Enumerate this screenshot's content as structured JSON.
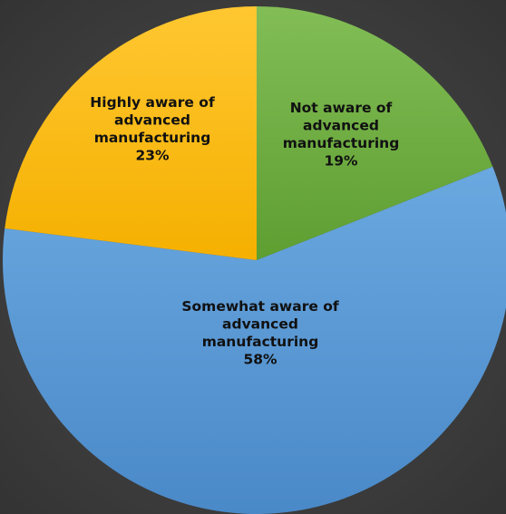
{
  "chart_data": {
    "type": "pie",
    "title": "",
    "start_angle_deg": 0,
    "direction": "clockwise",
    "slices": [
      {
        "label_lines": [
          "Not aware of",
          "advanced",
          "manufacturing"
        ],
        "percent_label": "19%",
        "value": 19,
        "color": "#6bab3f"
      },
      {
        "label_lines": [
          "Somewhat aware of",
          "advanced",
          "manufacturing"
        ],
        "percent_label": "58%",
        "value": 58,
        "color": "#5b9bd5"
      },
      {
        "label_lines": [
          "Highly aware of",
          "advanced",
          "manufacturing"
        ],
        "percent_label": "23%",
        "value": 23,
        "color": "#ffbe10"
      }
    ]
  }
}
